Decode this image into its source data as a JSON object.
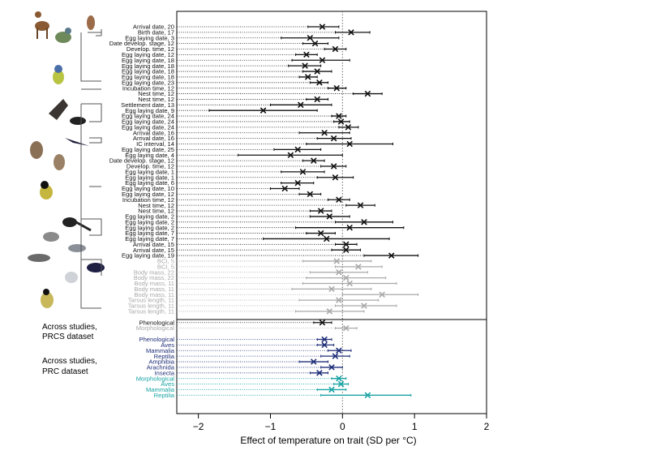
{
  "chart_data": {
    "type": "scatter",
    "subtype": "forest-plot",
    "title": "",
    "xlabel": "Effect of temperature on trait (SD per °C)",
    "ylabel": "",
    "xlim": [
      -2.3,
      2.0
    ],
    "xticks": [
      -2,
      -1,
      0,
      1,
      2
    ],
    "grid": false,
    "reference_line_x": 0,
    "group_labels": [
      {
        "id": "prcs",
        "text_lines": [
          "Across studies,",
          "PRCS dataset"
        ]
      },
      {
        "id": "prc",
        "text_lines": [
          "Across studies,",
          "PRC dataset"
        ]
      }
    ],
    "colors": {
      "black": "#111111",
      "grey": "#a9a9a9",
      "navy": "#1f2e78",
      "teal": "#1aa3a3"
    },
    "rows": [
      {
        "label": "Arrival date, 20",
        "est": -0.28,
        "lo": -0.48,
        "hi": -0.05,
        "color": "black"
      },
      {
        "label": "Birth date, 17",
        "est": 0.12,
        "lo": -0.1,
        "hi": 0.38,
        "color": "black"
      },
      {
        "label": "Egg laying date, 3",
        "est": -0.45,
        "lo": -0.85,
        "hi": -0.05,
        "color": "black"
      },
      {
        "label": "Date develop. stage, 12",
        "est": -0.38,
        "lo": -0.55,
        "hi": -0.2,
        "color": "black"
      },
      {
        "label": "Develop. time, 12",
        "est": -0.1,
        "lo": -0.25,
        "hi": 0.05,
        "color": "black"
      },
      {
        "label": "Egg laying date, 12",
        "est": -0.5,
        "lo": -0.65,
        "hi": -0.35,
        "color": "black"
      },
      {
        "label": "Egg laying date, 18",
        "est": -0.28,
        "lo": -0.7,
        "hi": 0.1,
        "color": "black"
      },
      {
        "label": "Egg laying date, 18",
        "est": -0.52,
        "lo": -0.75,
        "hi": -0.3,
        "color": "black"
      },
      {
        "label": "Egg laying date, 18",
        "est": -0.35,
        "lo": -0.55,
        "hi": -0.15,
        "color": "black"
      },
      {
        "label": "Egg laying date, 18",
        "est": -0.48,
        "lo": -0.6,
        "hi": -0.35,
        "color": "black"
      },
      {
        "label": "Egg laying date, 23",
        "est": -0.32,
        "lo": -0.45,
        "hi": -0.2,
        "color": "black"
      },
      {
        "label": "Incubation time, 12",
        "est": -0.08,
        "lo": -0.2,
        "hi": 0.05,
        "color": "black"
      },
      {
        "label": "Nest time, 12",
        "est": 0.35,
        "lo": 0.15,
        "hi": 0.55,
        "color": "black"
      },
      {
        "label": "Nest time, 12",
        "est": -0.35,
        "lo": -0.5,
        "hi": -0.2,
        "color": "black"
      },
      {
        "label": "Settlement date, 13",
        "est": -0.58,
        "lo": -1.0,
        "hi": -0.15,
        "color": "black"
      },
      {
        "label": "Egg laying date, 9",
        "est": -1.1,
        "lo": -1.85,
        "hi": -0.35,
        "color": "black"
      },
      {
        "label": "Egg laying date, 24",
        "est": -0.05,
        "lo": -0.15,
        "hi": 0.05,
        "color": "black"
      },
      {
        "label": "Egg laying date, 24",
        "est": -0.02,
        "lo": -0.12,
        "hi": 0.1,
        "color": "black"
      },
      {
        "label": "Egg laying date, 24",
        "est": 0.08,
        "lo": -0.05,
        "hi": 0.22,
        "color": "black"
      },
      {
        "label": "Arrival date, 16",
        "est": -0.25,
        "lo": -0.6,
        "hi": 0.1,
        "color": "black"
      },
      {
        "label": "Arrival date, 16",
        "est": -0.12,
        "lo": -0.35,
        "hi": 0.12,
        "color": "black"
      },
      {
        "label": "IC interval, 14",
        "est": 0.1,
        "lo": -0.5,
        "hi": 0.7,
        "color": "black"
      },
      {
        "label": "Egg laying date, 25",
        "est": -0.62,
        "lo": -0.95,
        "hi": -0.3,
        "color": "black"
      },
      {
        "label": "Egg laying date, 4",
        "est": -0.72,
        "lo": -1.45,
        "hi": 0.0,
        "color": "black"
      },
      {
        "label": "Date develop. stage, 12",
        "est": -0.4,
        "lo": -0.55,
        "hi": -0.25,
        "color": "black"
      },
      {
        "label": "Develop. time, 12",
        "est": -0.12,
        "lo": -0.3,
        "hi": 0.05,
        "color": "black"
      },
      {
        "label": "Egg laying date, 1",
        "est": -0.55,
        "lo": -0.85,
        "hi": -0.25,
        "color": "black"
      },
      {
        "label": "Egg laying date, 1",
        "est": -0.1,
        "lo": -0.35,
        "hi": 0.15,
        "color": "black"
      },
      {
        "label": "Egg laying date, 6",
        "est": -0.62,
        "lo": -0.85,
        "hi": -0.4,
        "color": "black"
      },
      {
        "label": "Egg laying date, 10",
        "est": -0.8,
        "lo": -1.0,
        "hi": -0.6,
        "color": "black"
      },
      {
        "label": "Egg laying date, 12",
        "est": -0.45,
        "lo": -0.6,
        "hi": -0.3,
        "color": "black"
      },
      {
        "label": "Incubation time, 12",
        "est": -0.05,
        "lo": -0.2,
        "hi": 0.1,
        "color": "black"
      },
      {
        "label": "Nest time, 12",
        "est": 0.25,
        "lo": 0.05,
        "hi": 0.45,
        "color": "black"
      },
      {
        "label": "Nest time, 12",
        "est": -0.3,
        "lo": -0.45,
        "hi": -0.15,
        "color": "black"
      },
      {
        "label": "Egg laying date, 2",
        "est": -0.18,
        "lo": -0.45,
        "hi": 0.1,
        "color": "black"
      },
      {
        "label": "Egg laying date, 2",
        "est": 0.3,
        "lo": -0.1,
        "hi": 0.7,
        "color": "black"
      },
      {
        "label": "Egg laying date, 2",
        "est": 0.1,
        "lo": -0.65,
        "hi": 0.85,
        "color": "black"
      },
      {
        "label": "Egg laying date, 7",
        "est": -0.3,
        "lo": -0.5,
        "hi": -0.1,
        "color": "black"
      },
      {
        "label": "Egg laying date, 7",
        "est": -0.22,
        "lo": -1.1,
        "hi": 0.65,
        "color": "black"
      },
      {
        "label": "Arrival date, 15",
        "est": 0.05,
        "lo": -0.1,
        "hi": 0.2,
        "color": "black"
      },
      {
        "label": "Arrival date, 15",
        "est": 0.05,
        "lo": -0.15,
        "hi": 0.25,
        "color": "black"
      },
      {
        "label": "Egg laying date, 19",
        "est": 0.68,
        "lo": 0.3,
        "hi": 1.05,
        "color": "black"
      },
      {
        "label": "BCI, 5",
        "est": -0.08,
        "lo": -0.55,
        "hi": 0.4,
        "color": "grey"
      },
      {
        "label": "BCI, 5",
        "est": 0.22,
        "lo": -0.1,
        "hi": 0.55,
        "color": "grey"
      },
      {
        "label": "Body mass, 22",
        "est": -0.05,
        "lo": -0.45,
        "hi": 0.35,
        "color": "grey"
      },
      {
        "label": "Body mass, 22",
        "est": 0.05,
        "lo": -0.5,
        "hi": 0.6,
        "color": "grey"
      },
      {
        "label": "Body mass, 11",
        "est": 0.1,
        "lo": -0.55,
        "hi": 0.75,
        "color": "grey"
      },
      {
        "label": "Body mass, 11",
        "est": -0.15,
        "lo": -0.7,
        "hi": 0.4,
        "color": "grey"
      },
      {
        "label": "Body mass, 11",
        "est": 0.55,
        "lo": 0.0,
        "hi": 1.05,
        "color": "grey"
      },
      {
        "label": "Tarsus length, 11",
        "est": -0.05,
        "lo": -0.6,
        "hi": 0.5,
        "color": "grey"
      },
      {
        "label": "Tarsus length, 11",
        "est": 0.3,
        "lo": -0.1,
        "hi": 0.75,
        "color": "grey"
      },
      {
        "label": "Tarsus length, 11",
        "est": -0.18,
        "lo": -0.65,
        "hi": 0.3,
        "color": "grey"
      },
      {
        "label": "Phenological",
        "est": -0.28,
        "lo": -0.4,
        "hi": -0.15,
        "color": "black",
        "gap_before": true
      },
      {
        "label": "Morphological",
        "est": 0.05,
        "lo": -0.1,
        "hi": 0.2,
        "color": "grey"
      },
      {
        "label": "Phenological",
        "est": -0.25,
        "lo": -0.35,
        "hi": -0.15,
        "color": "navy",
        "gap_before": true
      },
      {
        "label": "Aves",
        "est": -0.25,
        "lo": -0.35,
        "hi": -0.12,
        "color": "navy"
      },
      {
        "label": "Mammalia",
        "est": -0.05,
        "lo": -0.2,
        "hi": 0.12,
        "color": "navy"
      },
      {
        "label": "Reptilia",
        "est": -0.1,
        "lo": -0.3,
        "hi": 0.1,
        "color": "navy"
      },
      {
        "label": "Amphibia",
        "est": -0.4,
        "lo": -0.6,
        "hi": -0.2,
        "color": "navy"
      },
      {
        "label": "Arachnida",
        "est": -0.15,
        "lo": -0.3,
        "hi": 0.0,
        "color": "navy"
      },
      {
        "label": "Insecta",
        "est": -0.32,
        "lo": -0.45,
        "hi": -0.2,
        "color": "navy"
      },
      {
        "label": "Morphological",
        "est": -0.05,
        "lo": -0.15,
        "hi": 0.05,
        "color": "teal"
      },
      {
        "label": "Aves",
        "est": -0.02,
        "lo": -0.12,
        "hi": 0.08,
        "color": "teal"
      },
      {
        "label": "Mammalia",
        "est": -0.15,
        "lo": -0.35,
        "hi": 0.05,
        "color": "teal"
      },
      {
        "label": "Reptilia",
        "est": 0.35,
        "lo": -0.3,
        "hi": 0.95,
        "color": "teal"
      }
    ]
  }
}
